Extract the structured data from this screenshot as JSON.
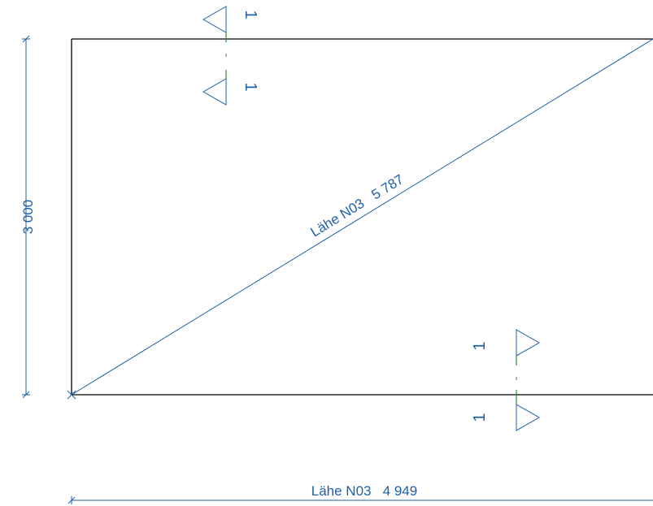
{
  "colors": {
    "outline": "#000000",
    "annotation": "#1f5fa8",
    "section_line": "#2e8b2e"
  },
  "dimensions": {
    "diagonal": "Lähe N03   5 787",
    "bottom": "Lähe N03   4 949",
    "left": "3 000"
  },
  "section_marks": {
    "top": {
      "upper_label": "1",
      "lower_label": "1"
    },
    "bottom": {
      "upper_label": "1",
      "lower_label": "1"
    }
  }
}
